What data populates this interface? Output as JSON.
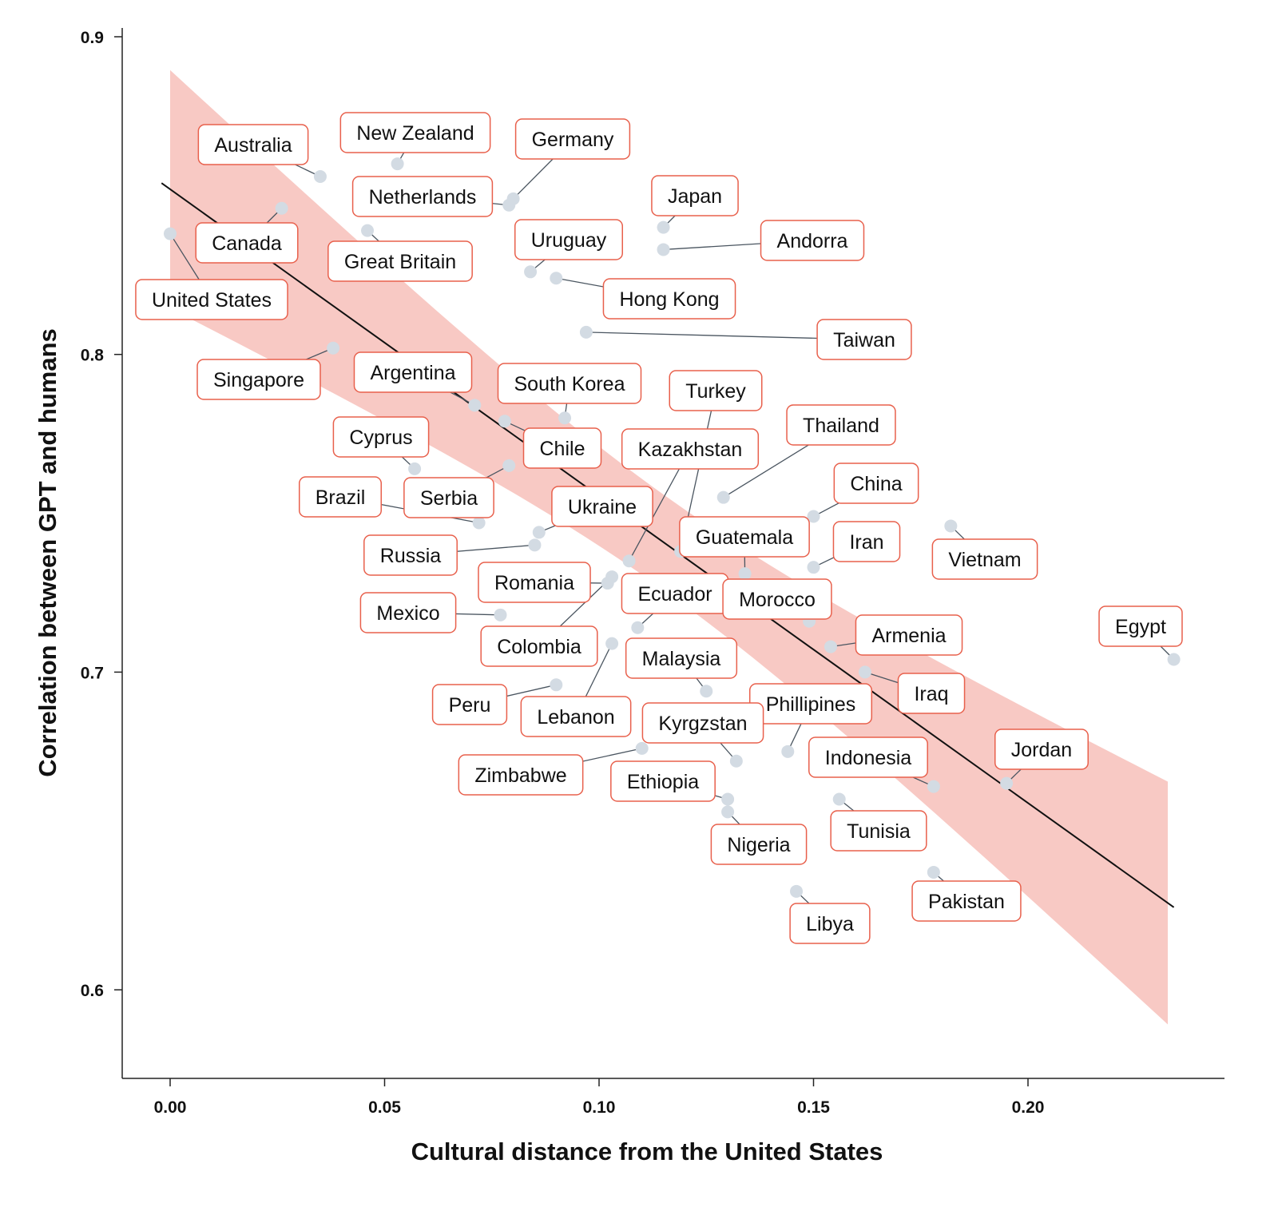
{
  "chart_data": {
    "type": "scatter",
    "title": "",
    "xlabel": "Cultural distance from the United States",
    "ylabel": "Correlation between GPT and humans",
    "xlim": [
      -0.011,
      0.246
    ],
    "ylim": [
      0.572,
      0.903
    ],
    "xticks": [
      "0.00",
      "0.05",
      "0.10",
      "0.15",
      "0.20"
    ],
    "yticks": [
      "0.6",
      "0.7",
      "0.8",
      "0.9"
    ],
    "grid": false,
    "colors": {
      "points": "#d3dbe3",
      "band": "#f8c9c4",
      "line": "#111111",
      "label_border": "#e8604c",
      "leader": "#4a5560"
    },
    "regression": {
      "intercept": 0.852,
      "slope": -0.966,
      "x_range": [
        -0.002,
        0.234
      ],
      "band_x_range": [
        0.0,
        0.2326
      ]
    },
    "points": [
      {
        "name": "United States",
        "x": 0.0,
        "y": 0.838
      },
      {
        "name": "Australia",
        "x": 0.035,
        "y": 0.856
      },
      {
        "name": "Canada",
        "x": 0.026,
        "y": 0.846
      },
      {
        "name": "New Zealand",
        "x": 0.053,
        "y": 0.86
      },
      {
        "name": "Great Britain",
        "x": 0.046,
        "y": 0.839
      },
      {
        "name": "Netherlands",
        "x": 0.079,
        "y": 0.847
      },
      {
        "name": "Germany",
        "x": 0.08,
        "y": 0.849
      },
      {
        "name": "Singapore",
        "x": 0.038,
        "y": 0.802
      },
      {
        "name": "Japan",
        "x": 0.115,
        "y": 0.84
      },
      {
        "name": "Andorra",
        "x": 0.115,
        "y": 0.833
      },
      {
        "name": "Uruguay",
        "x": 0.084,
        "y": 0.826
      },
      {
        "name": "Hong Kong",
        "x": 0.09,
        "y": 0.824
      },
      {
        "name": "Taiwan",
        "x": 0.097,
        "y": 0.807
      },
      {
        "name": "Argentina",
        "x": 0.071,
        "y": 0.784
      },
      {
        "name": "Chile",
        "x": 0.078,
        "y": 0.779
      },
      {
        "name": "South Korea",
        "x": 0.092,
        "y": 0.78
      },
      {
        "name": "Cyprus",
        "x": 0.057,
        "y": 0.764
      },
      {
        "name": "Serbia",
        "x": 0.079,
        "y": 0.765
      },
      {
        "name": "Brazil",
        "x": 0.072,
        "y": 0.747
      },
      {
        "name": "Turkey",
        "x": 0.119,
        "y": 0.738
      },
      {
        "name": "Kazakhstan",
        "x": 0.107,
        "y": 0.735
      },
      {
        "name": "Thailand",
        "x": 0.129,
        "y": 0.755
      },
      {
        "name": "China",
        "x": 0.15,
        "y": 0.749
      },
      {
        "name": "Vietnam",
        "x": 0.182,
        "y": 0.746
      },
      {
        "name": "Iran",
        "x": 0.15,
        "y": 0.733
      },
      {
        "name": "Guatemala",
        "x": 0.134,
        "y": 0.731
      },
      {
        "name": "Ukraine",
        "x": 0.086,
        "y": 0.744
      },
      {
        "name": "Russia",
        "x": 0.085,
        "y": 0.74
      },
      {
        "name": "Romania",
        "x": 0.102,
        "y": 0.728
      },
      {
        "name": "Colombia",
        "x": 0.103,
        "y": 0.73
      },
      {
        "name": "Mexico",
        "x": 0.077,
        "y": 0.718
      },
      {
        "name": "Ecuador",
        "x": 0.109,
        "y": 0.714
      },
      {
        "name": "Morocco",
        "x": 0.149,
        "y": 0.716
      },
      {
        "name": "Armenia",
        "x": 0.154,
        "y": 0.708
      },
      {
        "name": "Iraq",
        "x": 0.162,
        "y": 0.7
      },
      {
        "name": "Egypt",
        "x": 0.234,
        "y": 0.704
      },
      {
        "name": "Lebanon",
        "x": 0.103,
        "y": 0.709
      },
      {
        "name": "Malaysia",
        "x": 0.125,
        "y": 0.694
      },
      {
        "name": "Peru",
        "x": 0.09,
        "y": 0.696
      },
      {
        "name": "Phillipines",
        "x": 0.144,
        "y": 0.675
      },
      {
        "name": "Kyrgzstan",
        "x": 0.132,
        "y": 0.672
      },
      {
        "name": "Zimbabwe",
        "x": 0.11,
        "y": 0.676
      },
      {
        "name": "Indonesia",
        "x": 0.178,
        "y": 0.664
      },
      {
        "name": "Jordan",
        "x": 0.195,
        "y": 0.665
      },
      {
        "name": "Ethiopia",
        "x": 0.13,
        "y": 0.66
      },
      {
        "name": "Nigeria",
        "x": 0.13,
        "y": 0.656
      },
      {
        "name": "Tunisia",
        "x": 0.156,
        "y": 0.66
      },
      {
        "name": "Pakistan",
        "x": 0.178,
        "y": 0.637
      },
      {
        "name": "Libya",
        "x": 0.146,
        "y": 0.631
      }
    ]
  }
}
